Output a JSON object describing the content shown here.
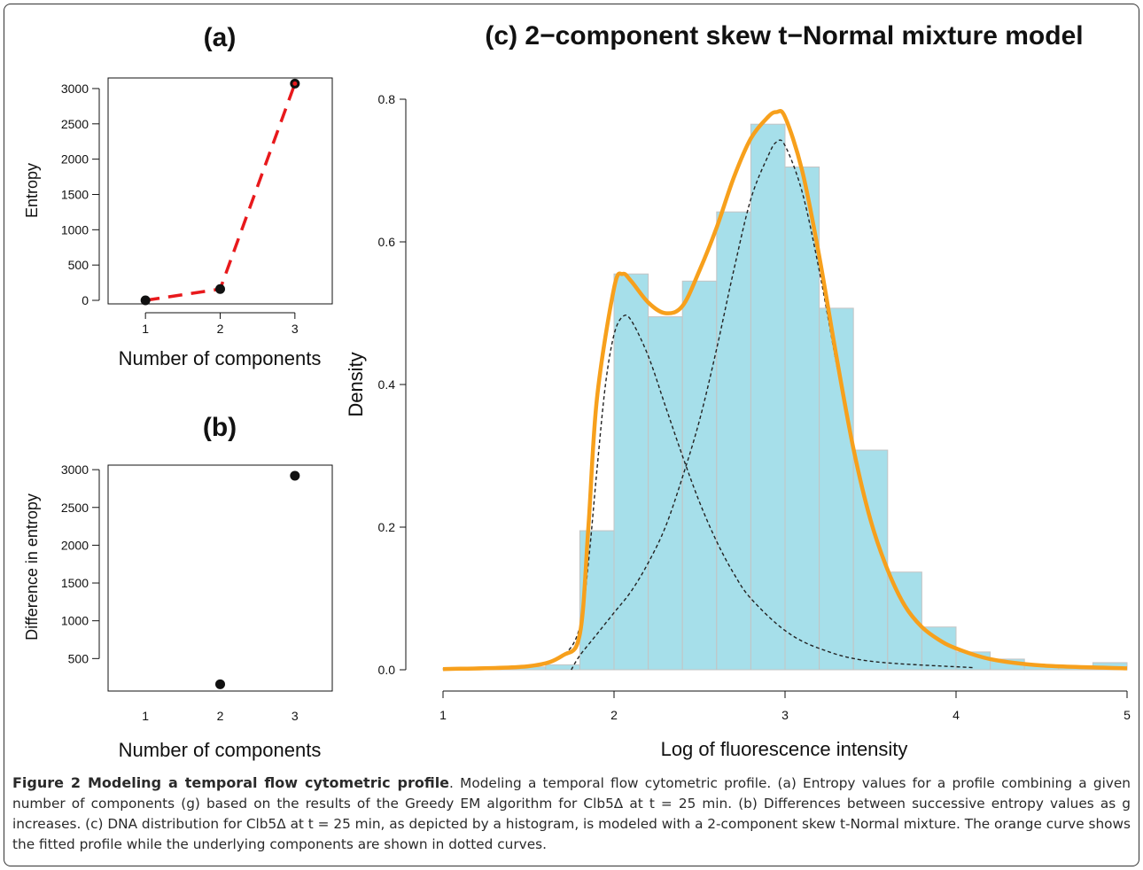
{
  "chart_data": [
    {
      "panel": "a",
      "type": "line",
      "title": "(a)",
      "xlabel": "Number of components",
      "ylabel": "Entropy",
      "x": [
        1,
        2,
        3
      ],
      "values": [
        0,
        160,
        3070
      ],
      "xlim": [
        0.5,
        3.5
      ],
      "ylim": [
        -50,
        3150
      ],
      "xticks": [
        "1",
        "2",
        "3"
      ],
      "yticks": [
        "0",
        "500",
        "1000",
        "1500",
        "2000",
        "2500",
        "3000"
      ],
      "line_color": "#e8191c"
    },
    {
      "panel": "b",
      "type": "scatter",
      "title": "(b)",
      "xlabel": "Number of components",
      "ylabel": "Difference in entropy",
      "x": [
        2,
        3
      ],
      "values": [
        160,
        2920
      ],
      "xlim": [
        0.5,
        3.5
      ],
      "ylim": [
        70,
        3060
      ],
      "xticks": [
        "1",
        "2",
        "3"
      ],
      "yticks": [
        "500",
        "1000",
        "1500",
        "2000",
        "2500",
        "3000"
      ]
    },
    {
      "panel": "c",
      "type": "bar",
      "title": "(c) 2−component skew t−Normal mixture model",
      "xlabel": "Log of fluorescence intensity",
      "ylabel": "Density",
      "xlim": [
        1,
        5
      ],
      "ylim": [
        0,
        0.8
      ],
      "xticks": [
        "1",
        "2",
        "3",
        "4",
        "5"
      ],
      "yticks": [
        "0.0",
        "0.2",
        "0.4",
        "0.6",
        "0.8"
      ],
      "bin_width": 0.2,
      "bin_starts": [
        1.0,
        1.2,
        1.4,
        1.6,
        1.8,
        2.0,
        2.2,
        2.4,
        2.6,
        2.8,
        3.0,
        3.2,
        3.4,
        3.6,
        3.8,
        4.0,
        4.2,
        4.4,
        4.6,
        4.8
      ],
      "values": [
        0.002,
        0.002,
        0.004,
        0.007,
        0.195,
        0.555,
        0.495,
        0.545,
        0.642,
        0.765,
        0.705,
        0.507,
        0.308,
        0.137,
        0.06,
        0.025,
        0.015,
        0.006,
        0.003,
        0.01
      ],
      "bar_color": "#a6dfea",
      "fitted_curve": {
        "color": "#f7a01c",
        "x": [
          1.0,
          1.5,
          1.7,
          1.8,
          1.85,
          1.9,
          2.0,
          2.05,
          2.1,
          2.2,
          2.3,
          2.4,
          2.5,
          2.6,
          2.7,
          2.8,
          2.9,
          2.95,
          3.0,
          3.1,
          3.2,
          3.3,
          3.4,
          3.5,
          3.6,
          3.7,
          3.8,
          3.9,
          4.0,
          4.2,
          4.5,
          5.0
        ],
        "y": [
          0.001,
          0.005,
          0.02,
          0.05,
          0.2,
          0.38,
          0.535,
          0.555,
          0.545,
          0.515,
          0.5,
          0.51,
          0.56,
          0.62,
          0.69,
          0.745,
          0.775,
          0.782,
          0.775,
          0.7,
          0.58,
          0.44,
          0.31,
          0.21,
          0.14,
          0.09,
          0.06,
          0.042,
          0.03,
          0.015,
          0.006,
          0.002
        ]
      },
      "component_1": {
        "style": "dotted",
        "x": [
          1.0,
          1.5,
          1.7,
          1.8,
          1.85,
          1.9,
          1.95,
          2.0,
          2.05,
          2.1,
          2.2,
          2.3,
          2.4,
          2.5,
          2.6,
          2.7,
          2.8,
          3.0,
          3.2,
          3.5,
          4.1
        ],
        "y": [
          0.001,
          0.005,
          0.02,
          0.06,
          0.15,
          0.28,
          0.4,
          0.47,
          0.495,
          0.49,
          0.44,
          0.37,
          0.3,
          0.235,
          0.18,
          0.135,
          0.1,
          0.055,
          0.03,
          0.012,
          0.003
        ]
      },
      "component_2": {
        "style": "dotted",
        "x": [
          1.75,
          1.8,
          1.9,
          2.0,
          2.1,
          2.2,
          2.3,
          2.4,
          2.5,
          2.6,
          2.7,
          2.8,
          2.9,
          2.95,
          3.0,
          3.1,
          3.2,
          3.3,
          3.4,
          3.5,
          3.6,
          3.7,
          3.8,
          3.9,
          4.0,
          4.2,
          4.5,
          5.0
        ],
        "y": [
          0.0,
          0.02,
          0.05,
          0.08,
          0.11,
          0.15,
          0.2,
          0.27,
          0.35,
          0.45,
          0.56,
          0.66,
          0.72,
          0.74,
          0.735,
          0.67,
          0.56,
          0.43,
          0.31,
          0.21,
          0.14,
          0.09,
          0.06,
          0.042,
          0.03,
          0.015,
          0.006,
          0.002
        ]
      }
    }
  ],
  "caption": {
    "figure_label": "Figure 2 Modeling a temporal flow cytometric profile",
    "body": ". Modeling a temporal flow cytometric profile. (a) Entropy values for a profile combining a given number of components (g) based on the results of the Greedy EM algorithm for Clb5Δ at t = 25 min. (b) Differences between successive entropy values as g increases. (c) DNA distribution for Clb5Δ at t = 25 min, as depicted by a histogram, is modeled with a 2-component skew t-Normal mixture. The orange curve shows the fitted profile while the underlying components are shown in dotted curves."
  }
}
